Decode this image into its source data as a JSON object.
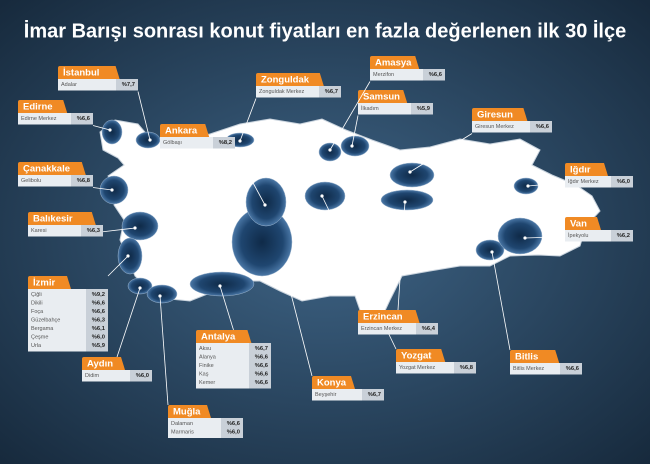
{
  "title": "İmar Barışı sonrası konut fiyatları en fazla değerlenen ilk 30 İlçe",
  "callouts": [
    {
      "province": "İstanbul",
      "rows": [
        {
          "district": "Adalar",
          "value": "%7,7"
        }
      ]
    },
    {
      "province": "Edirne",
      "rows": [
        {
          "district": "Edirne Merkez",
          "value": "%6,6"
        }
      ]
    },
    {
      "province": "Çanakkale",
      "rows": [
        {
          "district": "Gelibolu",
          "value": "%6,8"
        }
      ]
    },
    {
      "province": "Balıkesir",
      "rows": [
        {
          "district": "Karesi",
          "value": "%6,3"
        }
      ]
    },
    {
      "province": "İzmir",
      "rows": [
        {
          "district": "Çiğli",
          "value": "%9,2"
        },
        {
          "district": "Dikili",
          "value": "%6,6"
        },
        {
          "district": "Foça",
          "value": "%6,6"
        },
        {
          "district": "Güzelbahçe",
          "value": "%6,3"
        },
        {
          "district": "Bergama",
          "value": "%6,1"
        },
        {
          "district": "Çeşme",
          "value": "%6,0"
        },
        {
          "district": "Urla",
          "value": "%5,9"
        }
      ]
    },
    {
      "province": "Aydın",
      "rows": [
        {
          "district": "Didim",
          "value": "%6,0"
        }
      ]
    },
    {
      "province": "Muğla",
      "rows": [
        {
          "district": "Dalaman",
          "value": "%6,6"
        },
        {
          "district": "Marmaris",
          "value": "%6,0"
        }
      ]
    },
    {
      "province": "Antalya",
      "rows": [
        {
          "district": "Aksu",
          "value": "%6,7"
        },
        {
          "district": "Alanya",
          "value": "%6,6"
        },
        {
          "district": "Finike",
          "value": "%6,6"
        },
        {
          "district": "Kaş",
          "value": "%6,6"
        },
        {
          "district": "Kemer",
          "value": "%6,6"
        }
      ]
    },
    {
      "province": "Konya",
      "rows": [
        {
          "district": "Beyşehir",
          "value": "%6,7"
        }
      ]
    },
    {
      "province": "Yozgat",
      "rows": [
        {
          "district": "Yozgat Merkez",
          "value": "%6,8"
        }
      ]
    },
    {
      "province": "Erzincan",
      "rows": [
        {
          "district": "Erzincan Merkez",
          "value": "%6,4"
        }
      ]
    },
    {
      "province": "Bitlis",
      "rows": [
        {
          "district": "Bitlis Merkez",
          "value": "%6,6"
        }
      ]
    },
    {
      "province": "Van",
      "rows": [
        {
          "district": "İpekyolu",
          "value": "%6,2"
        }
      ]
    },
    {
      "province": "Iğdır",
      "rows": [
        {
          "district": "Iğdır Merkez",
          "value": "%6,0"
        }
      ]
    },
    {
      "province": "Giresun",
      "rows": [
        {
          "district": "Giresun Merkez",
          "value": "%6,6"
        }
      ]
    },
    {
      "province": "Samsun",
      "rows": [
        {
          "district": "İlkadım",
          "value": "%5,9"
        }
      ]
    },
    {
      "province": "Amasya",
      "rows": [
        {
          "district": "Merzifon",
          "value": "%6,6"
        }
      ]
    },
    {
      "province": "Zonguldak",
      "rows": [
        {
          "district": "Zonguldak Merkez",
          "value": "%6,7"
        }
      ]
    },
    {
      "province": "Ankara",
      "rows": [
        {
          "district": "Gölbaşı",
          "value": "%8,2"
        }
      ]
    }
  ]
}
